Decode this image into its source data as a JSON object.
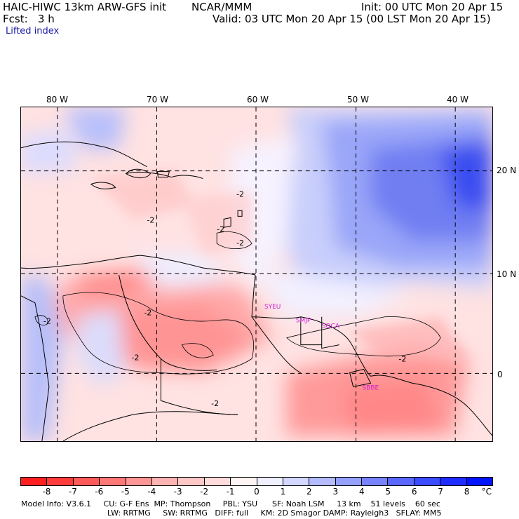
{
  "header": {
    "title": "HAIC-HIWC 13km ARW-GFS init",
    "org": "NCAR/MMM",
    "init": "Init: 00 UTC Mon 20 Apr 15",
    "fcst": "Fcst:   3 h",
    "valid": "Valid: 03 UTC Mon 20 Apr 15 (00 LST Mon 20 Apr 15)",
    "field": "Lifted index"
  },
  "map": {
    "lon_labels": [
      "80 W",
      "70 W",
      "60 W",
      "50 W",
      "40 W"
    ],
    "lat_labels": [
      "20 N",
      "10 N",
      "0"
    ],
    "contour_labels": [
      "-2",
      "-2",
      "-2",
      "-2",
      "-2",
      "-2",
      "-2",
      "-2",
      "-2"
    ],
    "stations": [
      "SYEU",
      "SMJP",
      "SOCA",
      "SBBE"
    ],
    "station_color": "#d21fd2"
  },
  "colorbar": {
    "labels": [
      "-8",
      "-7",
      "-6",
      "-5",
      "-4",
      "-3",
      "-2",
      "-1",
      "0",
      "1",
      "2",
      "3",
      "4",
      "5",
      "6",
      "7",
      "8",
      "°C"
    ],
    "colors": [
      "#ff1f1f",
      "#ff3c3c",
      "#ff5a5a",
      "#ff7878",
      "#ff9696",
      "#ffb4b4",
      "#ffc8c8",
      "#ffdcdc",
      "#fff4f4",
      "#f0f0ff",
      "#d4d8ff",
      "#b4bcff",
      "#96a0ff",
      "#7884ff",
      "#5a68ff",
      "#3c4cff",
      "#1e2cff",
      "#0014ff"
    ]
  },
  "footer": {
    "line1": "Model Info: V3.6.1     CU: G-F Ens  MP: Thompson     PBL: YSU      SF: Noah LSM     13 km    51 levels    60 sec",
    "line2": "LW: RRTMG     SW: RRTMG   DIFF: full     KM: 2D Smagor DAMP: Rayleigh3   SFLAY: MM5"
  }
}
